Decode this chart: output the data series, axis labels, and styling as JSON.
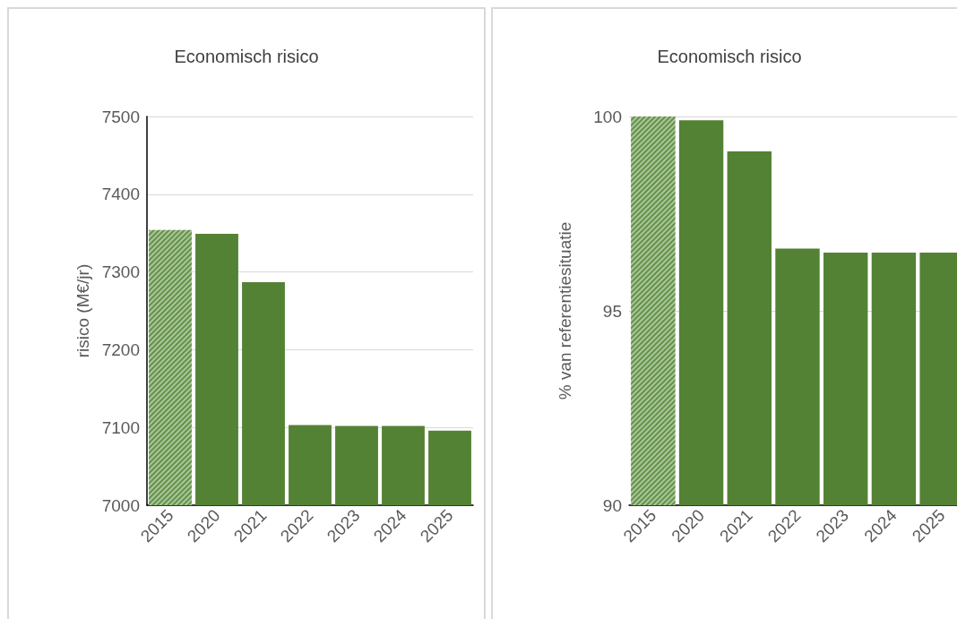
{
  "chart_data": [
    {
      "type": "bar",
      "title": "Economisch risico",
      "ylabel": "risico (M€/jr)",
      "categories": [
        "2015",
        "2020",
        "2021",
        "2022",
        "2023",
        "2024",
        "2025"
      ],
      "values": [
        7354,
        7349,
        7287,
        7103,
        7102,
        7102,
        7096
      ],
      "colors": [
        "#a9c79a",
        "#548235",
        "#548235",
        "#548235",
        "#548235",
        "#548235",
        "#548235"
      ],
      "ylim": [
        7000,
        7500
      ],
      "yticks": [
        7000,
        7100,
        7200,
        7300,
        7400,
        7500
      ],
      "grid": "y"
    },
    {
      "type": "bar",
      "title": "Economisch risico",
      "ylabel": "% van referentiesituatie",
      "categories": [
        "2015",
        "2020",
        "2021",
        "2022",
        "2023",
        "2024",
        "2025"
      ],
      "values": [
        100,
        99.9,
        99.1,
        96.6,
        96.5,
        96.5,
        96.5
      ],
      "colors": [
        "#a9c79a",
        "#548235",
        "#548235",
        "#548235",
        "#548235",
        "#548235",
        "#548235"
      ],
      "ylim": [
        90,
        100
      ],
      "yticks": [
        90,
        95,
        100
      ],
      "grid": "y"
    }
  ]
}
